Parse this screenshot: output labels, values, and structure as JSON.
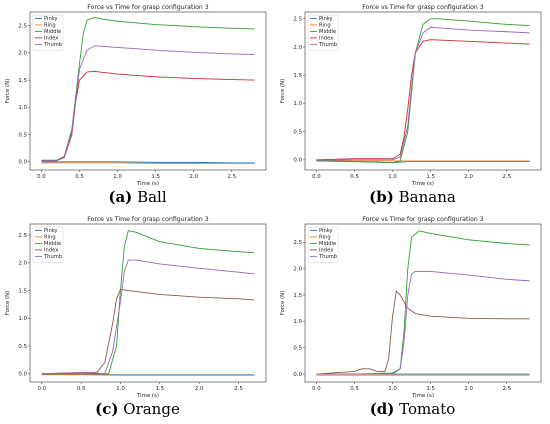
{
  "colors": {
    "Pinky": "#1f77b4",
    "Ring": "#ff7f0e",
    "Middle": "#2ca02c",
    "Index": "#d62728",
    "Index_d": "#8c564b",
    "Thumb": "#9467bd"
  },
  "chart_data": [
    {
      "id": "a",
      "label": "(a)",
      "name": "Ball",
      "type": "line",
      "title": "Force vs Time for grasp configuration 3",
      "xlabel": "Time (s)",
      "ylabel": "Force (N)",
      "xlim": [
        -0.15,
        2.95
      ],
      "ylim": [
        -0.15,
        2.75
      ],
      "xticks": [
        "0.0",
        "0.5",
        "1.0",
        "1.5",
        "2.0",
        "2.5"
      ],
      "xtickvals": [
        0,
        0.5,
        1,
        1.5,
        2,
        2.5
      ],
      "yticks": [
        "0.0",
        "0.5",
        "1.0",
        "1.5",
        "2.0",
        "2.5"
      ],
      "ytickvals": [
        0,
        0.5,
        1,
        1.5,
        2,
        2.5
      ],
      "legend": "top-left",
      "series": [
        {
          "name": "Pinky",
          "color_key": "Pinky",
          "x": [
            0,
            0.5,
            1,
            1.5,
            2,
            2.5,
            2.8
          ],
          "y": [
            0.0,
            0.0,
            0.0,
            -0.01,
            -0.01,
            -0.02,
            -0.02
          ]
        },
        {
          "name": "Ring",
          "color_key": "Ring",
          "x": [
            0,
            0.5,
            1,
            1.5,
            2,
            2.5,
            2.8
          ],
          "y": [
            -0.02,
            -0.02,
            -0.02,
            -0.03,
            -0.03,
            -0.03,
            -0.03
          ]
        },
        {
          "name": "Middle",
          "color_key": "Middle",
          "x": [
            0,
            0.2,
            0.3,
            0.4,
            0.5,
            0.55,
            0.6,
            0.7,
            0.8,
            1.0,
            1.5,
            2.0,
            2.5,
            2.8
          ],
          "y": [
            0.03,
            0.03,
            0.1,
            0.6,
            1.8,
            2.35,
            2.6,
            2.65,
            2.62,
            2.58,
            2.52,
            2.48,
            2.45,
            2.44
          ]
        },
        {
          "name": "Index",
          "color_key": "Index",
          "x": [
            0,
            0.2,
            0.3,
            0.4,
            0.45,
            0.5,
            0.6,
            0.7,
            1.0,
            1.5,
            2.0,
            2.5,
            2.8
          ],
          "y": [
            0.02,
            0.02,
            0.08,
            0.5,
            1.1,
            1.5,
            1.65,
            1.66,
            1.61,
            1.56,
            1.53,
            1.51,
            1.5
          ],
          "opacity": 1
        },
        {
          "name": "Thumb",
          "color_key": "Thumb",
          "x": [
            0,
            0.2,
            0.3,
            0.4,
            0.5,
            0.6,
            0.7,
            0.8,
            1.0,
            1.5,
            2.0,
            2.5,
            2.8
          ],
          "y": [
            0.02,
            0.02,
            0.1,
            0.55,
            1.7,
            2.05,
            2.13,
            2.12,
            2.1,
            2.05,
            2.01,
            1.98,
            1.97
          ]
        }
      ]
    },
    {
      "id": "b",
      "label": "(b)",
      "name": "Banana",
      "type": "line",
      "title": "Force vs Time for grasp configuration 3",
      "xlabel": "Time (s)",
      "ylabel": "Force (N)",
      "xlim": [
        -0.15,
        2.95
      ],
      "ylim": [
        -0.18,
        2.62
      ],
      "xticks": [
        "0.0",
        "0.5",
        "1.0",
        "1.5",
        "2.0",
        "2.5"
      ],
      "xtickvals": [
        0,
        0.5,
        1,
        1.5,
        2,
        2.5
      ],
      "yticks": [
        "0.0",
        "0.5",
        "1.0",
        "1.5",
        "2.0",
        "2.5"
      ],
      "ytickvals": [
        0,
        0.5,
        1,
        1.5,
        2,
        2.5
      ],
      "legend": "top-left",
      "series": [
        {
          "name": "Pinky",
          "color_key": "Pinky",
          "x": [
            0,
            0.5,
            1,
            1.2,
            1.5,
            2,
            2.5,
            2.8
          ],
          "y": [
            -0.02,
            -0.03,
            -0.05,
            -0.03,
            -0.03,
            -0.03,
            -0.03,
            -0.03
          ]
        },
        {
          "name": "Ring",
          "color_key": "Ring",
          "x": [
            0,
            0.5,
            1,
            1.5,
            2,
            2.5,
            2.8
          ],
          "y": [
            -0.02,
            -0.02,
            -0.02,
            -0.02,
            -0.02,
            -0.02,
            -0.02
          ]
        },
        {
          "name": "Middle",
          "color_key": "Middle",
          "x": [
            0,
            0.5,
            1.0,
            1.1,
            1.2,
            1.25,
            1.3,
            1.4,
            1.5,
            1.6,
            2.0,
            2.5,
            2.8
          ],
          "y": [
            -0.02,
            -0.03,
            -0.05,
            -0.02,
            0.5,
            1.2,
            1.9,
            2.4,
            2.5,
            2.5,
            2.46,
            2.4,
            2.38
          ]
        },
        {
          "name": "Index",
          "color_key": "Index",
          "x": [
            0,
            0.5,
            1.0,
            1.1,
            1.15,
            1.2,
            1.25,
            1.3,
            1.4,
            1.5,
            2.0,
            2.5,
            2.8
          ],
          "y": [
            0.0,
            0.02,
            0.02,
            0.1,
            0.4,
            0.9,
            1.5,
            1.9,
            2.1,
            2.13,
            2.1,
            2.07,
            2.05
          ]
        },
        {
          "name": "Thumb",
          "color_key": "Thumb",
          "x": [
            0,
            0.5,
            1.0,
            1.1,
            1.2,
            1.25,
            1.3,
            1.4,
            1.5,
            1.6,
            2.0,
            2.5,
            2.8
          ],
          "y": [
            -0.01,
            0.0,
            0.0,
            0.05,
            0.6,
            1.3,
            1.9,
            2.25,
            2.35,
            2.34,
            2.3,
            2.27,
            2.25
          ]
        }
      ]
    },
    {
      "id": "c",
      "label": "(c)",
      "name": "Orange",
      "type": "line",
      "title": "Force vs Time for grasp configuration 3",
      "xlabel": "Time (s)",
      "ylabel": "Force (N)",
      "xlim": [
        -0.15,
        2.85
      ],
      "ylim": [
        -0.15,
        2.7
      ],
      "xticks": [
        "0.0",
        "0.5",
        "1.0",
        "1.5",
        "2.0",
        "2.5"
      ],
      "xtickvals": [
        0,
        0.5,
        1,
        1.5,
        2,
        2.5
      ],
      "yticks": [
        "0.0",
        "0.5",
        "1.0",
        "1.5",
        "2.0",
        "2.5"
      ],
      "ytickvals": [
        0,
        0.5,
        1,
        1.5,
        2,
        2.5
      ],
      "legend": "top-left",
      "series": [
        {
          "name": "Pinky",
          "color_key": "Pinky",
          "x": [
            0,
            0.5,
            1,
            1.5,
            2,
            2.5,
            2.7
          ],
          "y": [
            -0.01,
            -0.01,
            -0.02,
            -0.02,
            -0.02,
            -0.02,
            -0.02
          ]
        },
        {
          "name": "Ring",
          "color_key": "Ring",
          "x": [
            0,
            0.5,
            1,
            1.5,
            2,
            2.5,
            2.7
          ],
          "y": [
            -0.02,
            -0.02,
            -0.03,
            -0.03,
            -0.03,
            -0.03,
            -0.03
          ]
        },
        {
          "name": "Middle",
          "color_key": "Middle",
          "x": [
            0,
            0.5,
            0.85,
            0.95,
            1.0,
            1.05,
            1.1,
            1.2,
            1.5,
            2.0,
            2.5,
            2.7
          ],
          "y": [
            0.0,
            0.0,
            0.0,
            0.5,
            1.5,
            2.3,
            2.58,
            2.55,
            2.38,
            2.26,
            2.2,
            2.18
          ]
        },
        {
          "name": "Index",
          "color_key": "Index_d",
          "x": [
            0,
            0.5,
            0.7,
            0.8,
            0.9,
            0.95,
            1.0,
            1.1,
            1.5,
            2.0,
            2.5,
            2.7
          ],
          "y": [
            0.0,
            0.02,
            0.02,
            0.2,
            0.9,
            1.35,
            1.52,
            1.5,
            1.43,
            1.38,
            1.35,
            1.33
          ]
        },
        {
          "name": "Thumb",
          "color_key": "Thumb",
          "x": [
            0,
            0.5,
            0.8,
            0.9,
            1.0,
            1.05,
            1.1,
            1.2,
            1.5,
            2.0,
            2.5,
            2.7
          ],
          "y": [
            0.0,
            0.02,
            0.0,
            0.4,
            1.3,
            1.85,
            2.05,
            2.05,
            1.98,
            1.9,
            1.83,
            1.8
          ]
        }
      ]
    },
    {
      "id": "d",
      "label": "(d)",
      "name": "Tomato",
      "type": "line",
      "title": "Force vs Time for grasp configuration 3",
      "xlabel": "Time (s)",
      "ylabel": "Force (N)",
      "xlim": [
        -0.15,
        2.95
      ],
      "ylim": [
        -0.15,
        2.85
      ],
      "xticks": [
        "0.0",
        "0.5",
        "1.0",
        "1.5",
        "2.0",
        "2.5"
      ],
      "xtickvals": [
        0,
        0.5,
        1,
        1.5,
        2,
        2.5
      ],
      "yticks": [
        "0.0",
        "0.5",
        "1.0",
        "1.5",
        "2.0",
        "2.5"
      ],
      "ytickvals": [
        0,
        0.5,
        1,
        1.5,
        2,
        2.5
      ],
      "legend": "top-left",
      "series": [
        {
          "name": "Pinky",
          "color_key": "Pinky",
          "x": [
            0,
            0.5,
            1,
            1.5,
            2,
            2.5,
            2.8
          ],
          "y": [
            0.0,
            0.0,
            0.0,
            0.0,
            0.0,
            0.0,
            0.0
          ]
        },
        {
          "name": "Ring",
          "color_key": "Ring",
          "x": [
            0,
            0.5,
            1,
            1.5,
            2,
            2.5,
            2.8
          ],
          "y": [
            -0.02,
            -0.02,
            -0.02,
            -0.02,
            -0.02,
            -0.02,
            -0.02
          ]
        },
        {
          "name": "Middle",
          "color_key": "Middle",
          "x": [
            0,
            0.5,
            1.0,
            1.1,
            1.15,
            1.2,
            1.25,
            1.35,
            1.5,
            2.0,
            2.5,
            2.8
          ],
          "y": [
            0.0,
            0.0,
            0.02,
            0.1,
            0.8,
            2.0,
            2.6,
            2.72,
            2.67,
            2.55,
            2.48,
            2.45
          ]
        },
        {
          "name": "Index",
          "color_key": "Index_d",
          "x": [
            0,
            0.5,
            0.6,
            0.7,
            0.8,
            0.9,
            0.95,
            1.0,
            1.05,
            1.1,
            1.2,
            1.3,
            1.5,
            2.0,
            2.5,
            2.8
          ],
          "y": [
            0.0,
            0.05,
            0.1,
            0.1,
            0.05,
            0.05,
            0.3,
            1.1,
            1.58,
            1.5,
            1.25,
            1.15,
            1.1,
            1.06,
            1.05,
            1.05
          ]
        },
        {
          "name": "Thumb",
          "color_key": "Thumb",
          "x": [
            0,
            0.5,
            1.0,
            1.1,
            1.15,
            1.2,
            1.25,
            1.3,
            1.5,
            2.0,
            2.5,
            2.8
          ],
          "y": [
            0.0,
            0.0,
            0.0,
            0.1,
            0.6,
            1.5,
            1.9,
            1.95,
            1.95,
            1.88,
            1.8,
            1.77
          ]
        }
      ]
    }
  ]
}
